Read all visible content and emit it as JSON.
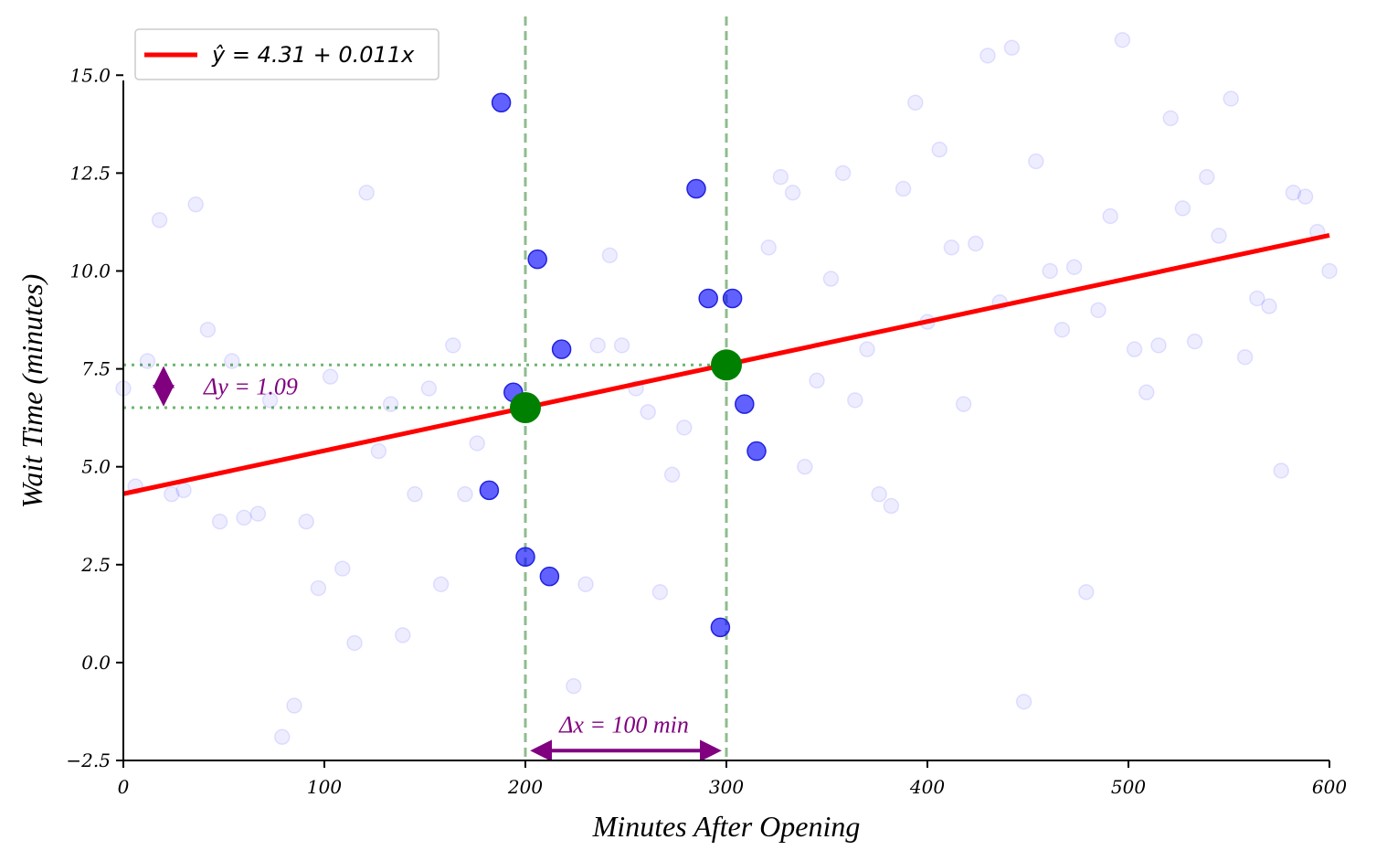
{
  "chart_data": {
    "type": "scatter",
    "title": "",
    "xlabel": "Minutes After Opening",
    "ylabel": "Wait Time (minutes)",
    "xlim": [
      0,
      600
    ],
    "ylim": [
      -2.5,
      16.5
    ],
    "x_ticks": [
      0,
      100,
      200,
      300,
      400,
      500,
      600
    ],
    "y_ticks": [
      -2.5,
      0.0,
      2.5,
      5.0,
      7.5,
      10.0,
      12.5,
      15.0
    ],
    "x_tick_labels": [
      "0",
      "100",
      "200",
      "300",
      "400",
      "500",
      "600"
    ],
    "y_tick_labels": [
      "−2.5",
      "0.0",
      "2.5",
      "5.0",
      "7.5",
      "10.0",
      "12.5",
      "15.0"
    ],
    "legend": {
      "label": "ŷ = 4.31 + 0.011x",
      "position": "top-left"
    },
    "regression": {
      "intercept": 4.31,
      "slope": 0.011,
      "x_range": [
        0,
        600
      ],
      "color": "#ff0000"
    },
    "faded_points": [
      [
        0,
        7.0
      ],
      [
        6,
        4.5
      ],
      [
        12,
        7.7
      ],
      [
        18,
        11.3
      ],
      [
        24,
        4.3
      ],
      [
        30,
        4.4
      ],
      [
        36,
        11.7
      ],
      [
        42,
        8.5
      ],
      [
        48,
        3.6
      ],
      [
        54,
        7.7
      ],
      [
        60,
        3.7
      ],
      [
        67,
        3.8
      ],
      [
        73,
        6.7
      ],
      [
        79,
        -1.9
      ],
      [
        85,
        -1.1
      ],
      [
        91,
        3.6
      ],
      [
        97,
        1.9
      ],
      [
        103,
        7.3
      ],
      [
        109,
        2.4
      ],
      [
        115,
        0.5
      ],
      [
        121,
        12.0
      ],
      [
        127,
        5.4
      ],
      [
        133,
        6.6
      ],
      [
        139,
        0.7
      ],
      [
        145,
        4.3
      ],
      [
        152,
        7.0
      ],
      [
        158,
        2.0
      ],
      [
        164,
        8.1
      ],
      [
        170,
        4.3
      ],
      [
        176,
        5.6
      ],
      [
        224,
        -0.6
      ],
      [
        230,
        2.0
      ],
      [
        236,
        8.1
      ],
      [
        242,
        10.4
      ],
      [
        248,
        8.1
      ],
      [
        255,
        7.0
      ],
      [
        261,
        6.4
      ],
      [
        267,
        1.8
      ],
      [
        273,
        4.8
      ],
      [
        279,
        6.0
      ],
      [
        321,
        10.6
      ],
      [
        327,
        12.4
      ],
      [
        333,
        12.0
      ],
      [
        339,
        5.0
      ],
      [
        345,
        7.2
      ],
      [
        352,
        9.8
      ],
      [
        358,
        12.5
      ],
      [
        364,
        6.7
      ],
      [
        370,
        8.0
      ],
      [
        376,
        4.3
      ],
      [
        382,
        4.0
      ],
      [
        388,
        12.1
      ],
      [
        394,
        14.3
      ],
      [
        400,
        8.7
      ],
      [
        406,
        13.1
      ],
      [
        412,
        10.6
      ],
      [
        418,
        6.6
      ],
      [
        424,
        10.7
      ],
      [
        430,
        15.5
      ],
      [
        436,
        9.2
      ],
      [
        442,
        15.7
      ],
      [
        448,
        -1.0
      ],
      [
        454,
        12.8
      ],
      [
        461,
        10.0
      ],
      [
        467,
        8.5
      ],
      [
        473,
        10.1
      ],
      [
        479,
        1.8
      ],
      [
        485,
        9.0
      ],
      [
        491,
        11.4
      ],
      [
        497,
        15.9
      ],
      [
        503,
        8.0
      ],
      [
        509,
        6.9
      ],
      [
        515,
        8.1
      ],
      [
        521,
        13.9
      ],
      [
        527,
        11.6
      ],
      [
        533,
        8.2
      ],
      [
        539,
        12.4
      ],
      [
        545,
        10.9
      ],
      [
        551,
        14.4
      ],
      [
        558,
        7.8
      ],
      [
        564,
        9.3
      ],
      [
        570,
        9.1
      ],
      [
        576,
        4.9
      ],
      [
        582,
        12.0
      ],
      [
        588,
        11.9
      ],
      [
        594,
        11.0
      ],
      [
        600,
        10.0
      ]
    ],
    "highlight_points": [
      [
        182,
        4.4
      ],
      [
        188,
        14.3
      ],
      [
        194,
        6.9
      ],
      [
        200,
        2.7
      ],
      [
        206,
        10.3
      ],
      [
        212,
        2.2
      ],
      [
        218,
        8.0
      ],
      [
        285,
        12.1
      ],
      [
        291,
        9.3
      ],
      [
        297,
        0.9
      ],
      [
        303,
        9.3
      ],
      [
        309,
        6.6
      ],
      [
        315,
        5.4
      ]
    ],
    "reference_points": [
      [
        200,
        6.51
      ],
      [
        300,
        7.6
      ]
    ],
    "vertical_lines": [
      200,
      300
    ],
    "horizontal_guides": [
      6.51,
      7.6
    ],
    "annotations": {
      "dy_label": "Δy = 1.09",
      "dx_label": "Δx = 100 min",
      "dy_arrow": {
        "x": 20,
        "y_from": 6.51,
        "y_to": 7.6
      },
      "dx_arrow": {
        "x_from": 200,
        "x_to": 300,
        "y": -2.25
      }
    },
    "colors": {
      "faded": "#0000ff",
      "highlight": "#0000ff",
      "reference": "#008000",
      "guide": "#8fbc8f",
      "annotation": "#800080"
    }
  }
}
